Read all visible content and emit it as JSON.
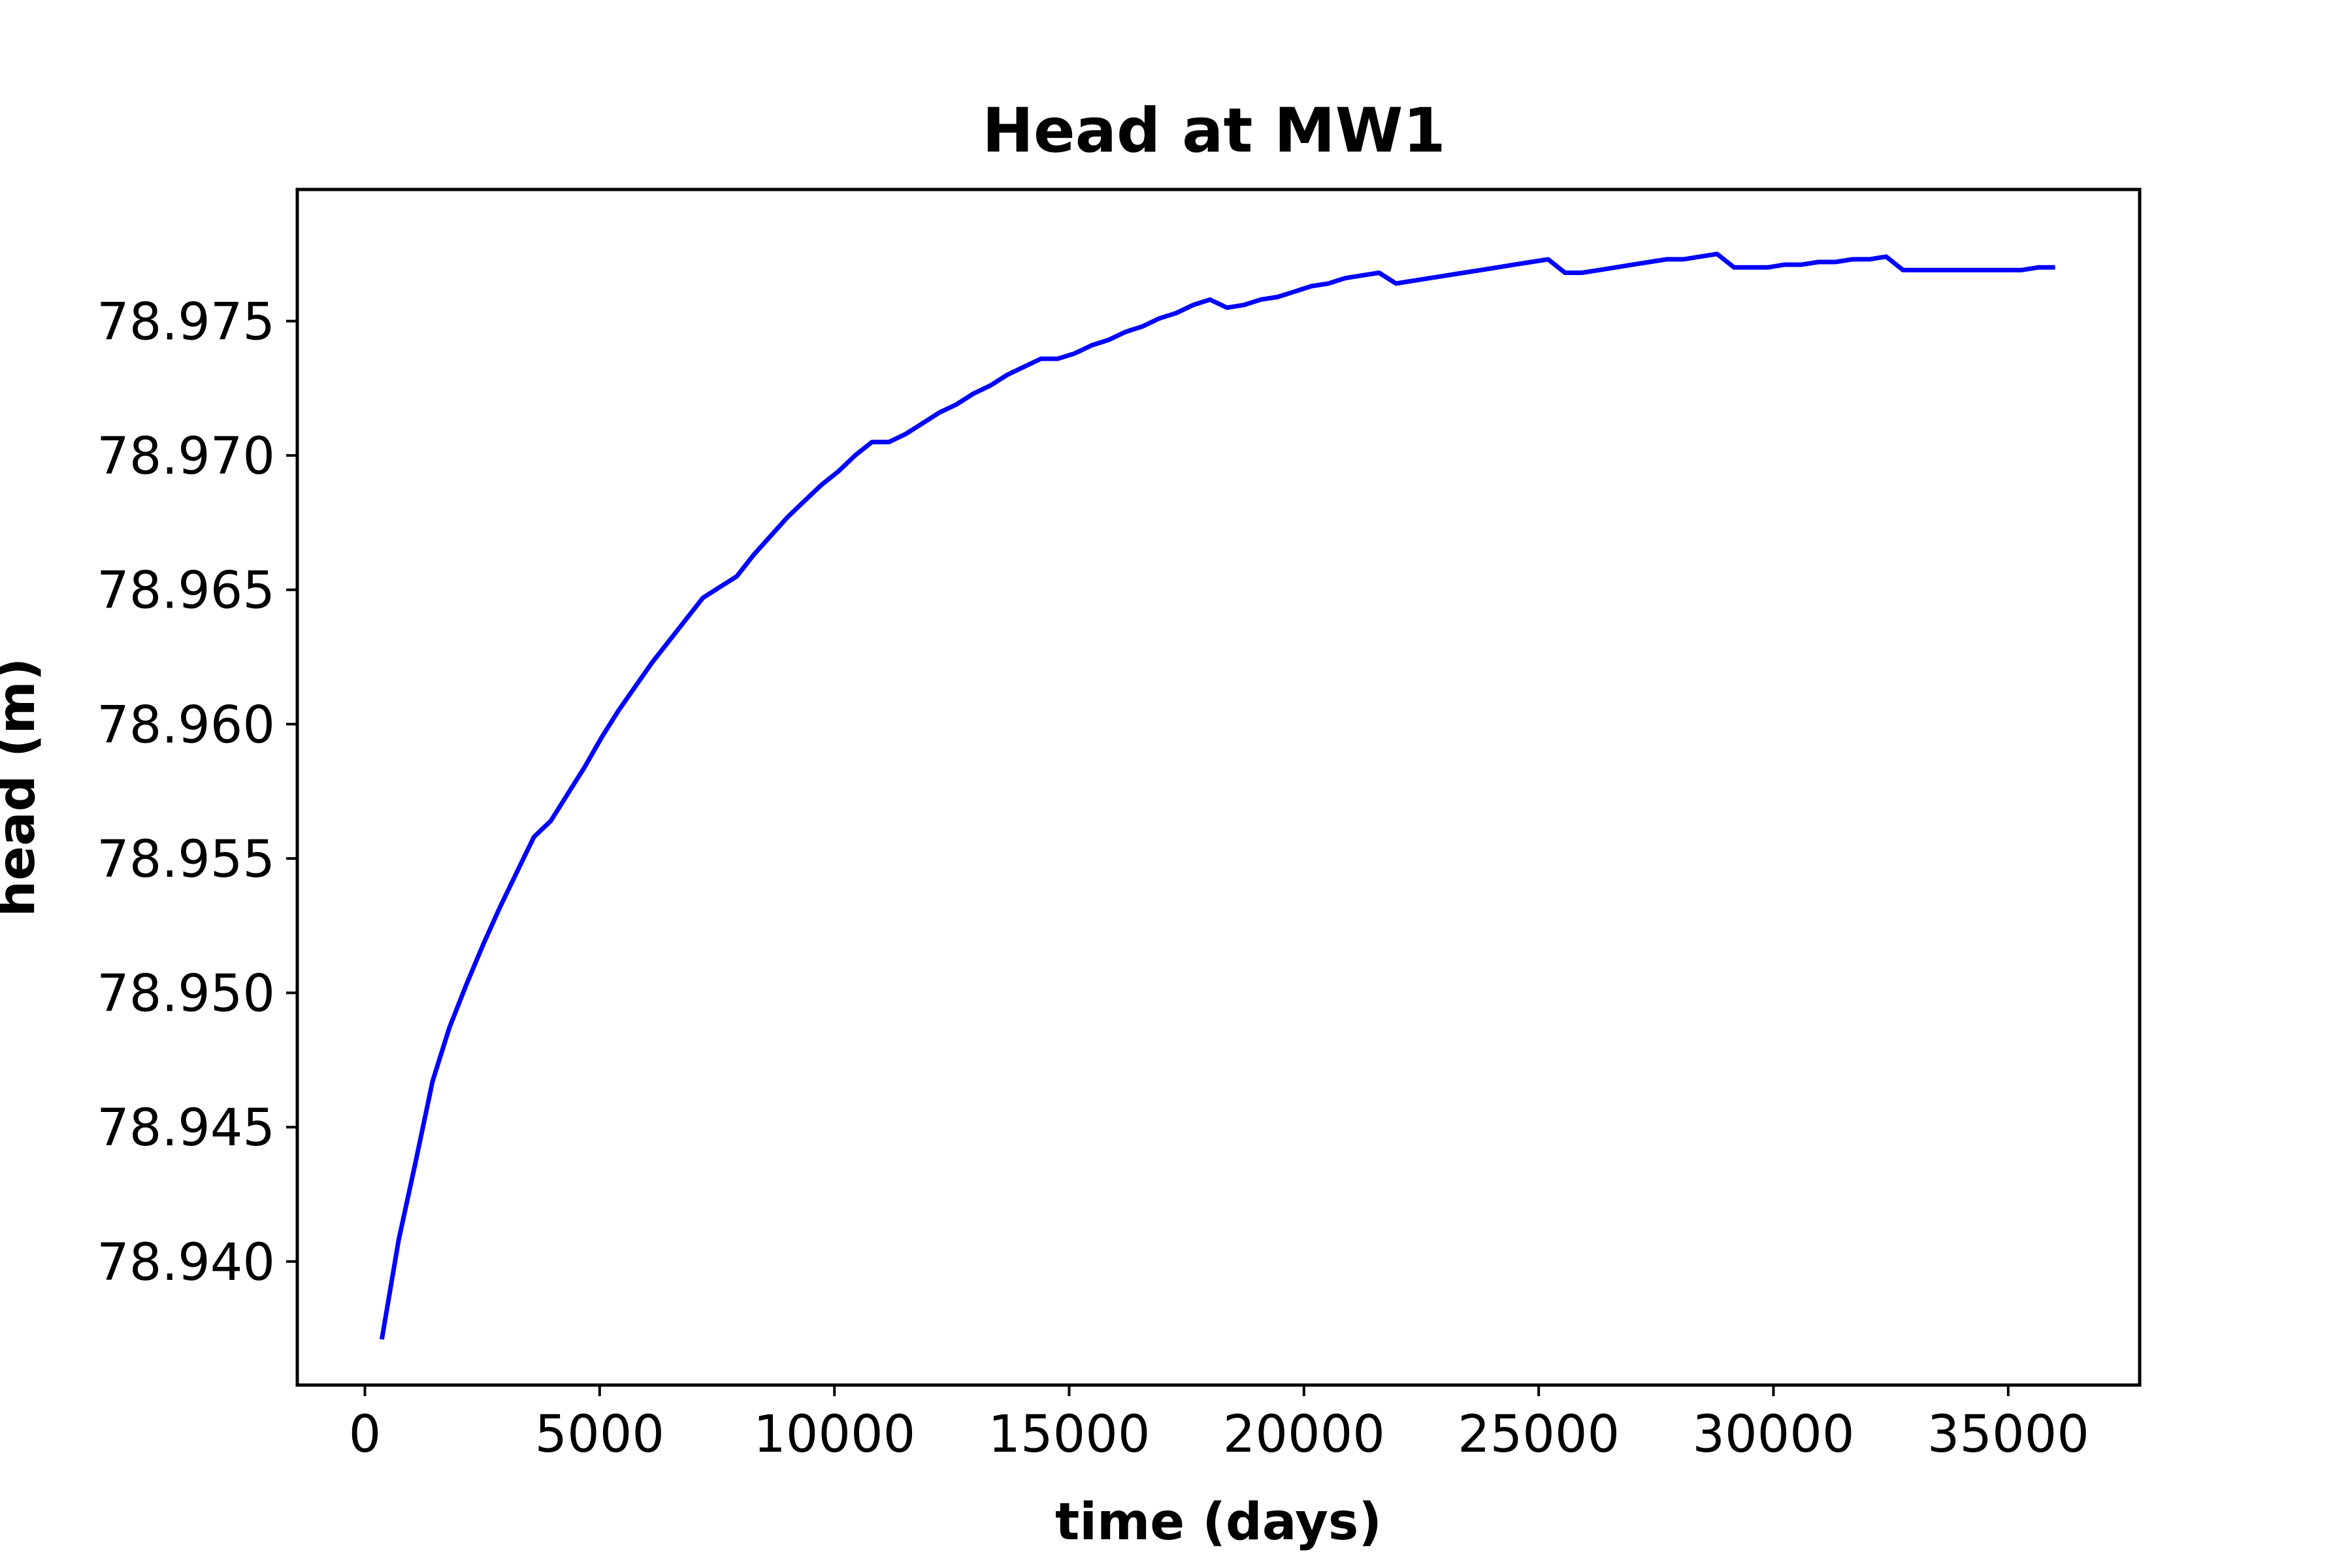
{
  "chart_data": {
    "type": "line",
    "title": "Head at MW1",
    "xlabel": "time (days)",
    "ylabel": "head (m)",
    "xlim": [
      -1440,
      37800
    ],
    "ylim": [
      78.9354,
      78.9799
    ],
    "xticks": [
      0,
      5000,
      10000,
      15000,
      20000,
      25000,
      30000,
      35000
    ],
    "xtick_labels": [
      "0",
      "5000",
      "10000",
      "15000",
      "20000",
      "25000",
      "30000",
      "35000"
    ],
    "yticks": [
      78.94,
      78.945,
      78.95,
      78.955,
      78.96,
      78.965,
      78.97,
      78.975
    ],
    "ytick_labels": [
      "78.940",
      "78.945",
      "78.950",
      "78.955",
      "78.960",
      "78.965",
      "78.970",
      "78.975"
    ],
    "grid": false,
    "series": [
      {
        "color": "#0000ff",
        "x": [
          360,
          720,
          1080,
          1440,
          1800,
          2160,
          2520,
          2880,
          3240,
          3600,
          3960,
          4320,
          4680,
          5040,
          5400,
          5760,
          6120,
          6480,
          6840,
          7200,
          7560,
          7920,
          8280,
          8640,
          9000,
          9360,
          9720,
          10080,
          10440,
          10800,
          11160,
          11520,
          11880,
          12240,
          12600,
          12960,
          13320,
          13680,
          14040,
          14400,
          14760,
          15120,
          15480,
          15840,
          16200,
          16560,
          16920,
          17280,
          17640,
          18000,
          18360,
          18720,
          19080,
          19440,
          19800,
          20160,
          20520,
          20880,
          21240,
          21600,
          21960,
          22320,
          22680,
          23040,
          23400,
          23760,
          24120,
          24480,
          24840,
          25200,
          25560,
          25920,
          26280,
          26640,
          27000,
          27360,
          27720,
          28080,
          28440,
          28800,
          29160,
          29520,
          29880,
          30240,
          30600,
          30960,
          31320,
          31680,
          32040,
          32400,
          32760,
          33120,
          33480,
          33840,
          34200,
          34560,
          34920,
          35280,
          35640,
          36000
        ],
        "y": [
          78.9371,
          78.9408,
          78.9437,
          78.9467,
          78.9487,
          78.9503,
          78.9518,
          78.9532,
          78.9545,
          78.9558,
          78.9564,
          78.9574,
          78.9584,
          78.9595,
          78.9605,
          78.9614,
          78.9623,
          78.9631,
          78.9639,
          78.9647,
          78.9651,
          78.9655,
          78.9663,
          78.967,
          78.9677,
          78.9683,
          78.9689,
          78.9694,
          78.97,
          78.9705,
          78.9705,
          78.9708,
          78.9712,
          78.9716,
          78.9719,
          78.9723,
          78.9726,
          78.973,
          78.9733,
          78.9736,
          78.9736,
          78.9738,
          78.9741,
          78.9743,
          78.9746,
          78.9748,
          78.9751,
          78.9753,
          78.9756,
          78.9758,
          78.9755,
          78.9756,
          78.9758,
          78.9759,
          78.9761,
          78.9763,
          78.9764,
          78.9766,
          78.9767,
          78.9768,
          78.9764,
          78.9765,
          78.9766,
          78.9767,
          78.9768,
          78.9769,
          78.977,
          78.9771,
          78.9772,
          78.9773,
          78.9768,
          78.9768,
          78.9769,
          78.977,
          78.9771,
          78.9772,
          78.9773,
          78.9773,
          78.9774,
          78.9775,
          78.977,
          78.977,
          78.977,
          78.9771,
          78.9771,
          78.9772,
          78.9772,
          78.9773,
          78.9773,
          78.9774,
          78.9769,
          78.9769,
          78.9769,
          78.9769,
          78.9769,
          78.9769,
          78.9769,
          78.9769,
          78.977,
          78.977
        ]
      }
    ]
  }
}
